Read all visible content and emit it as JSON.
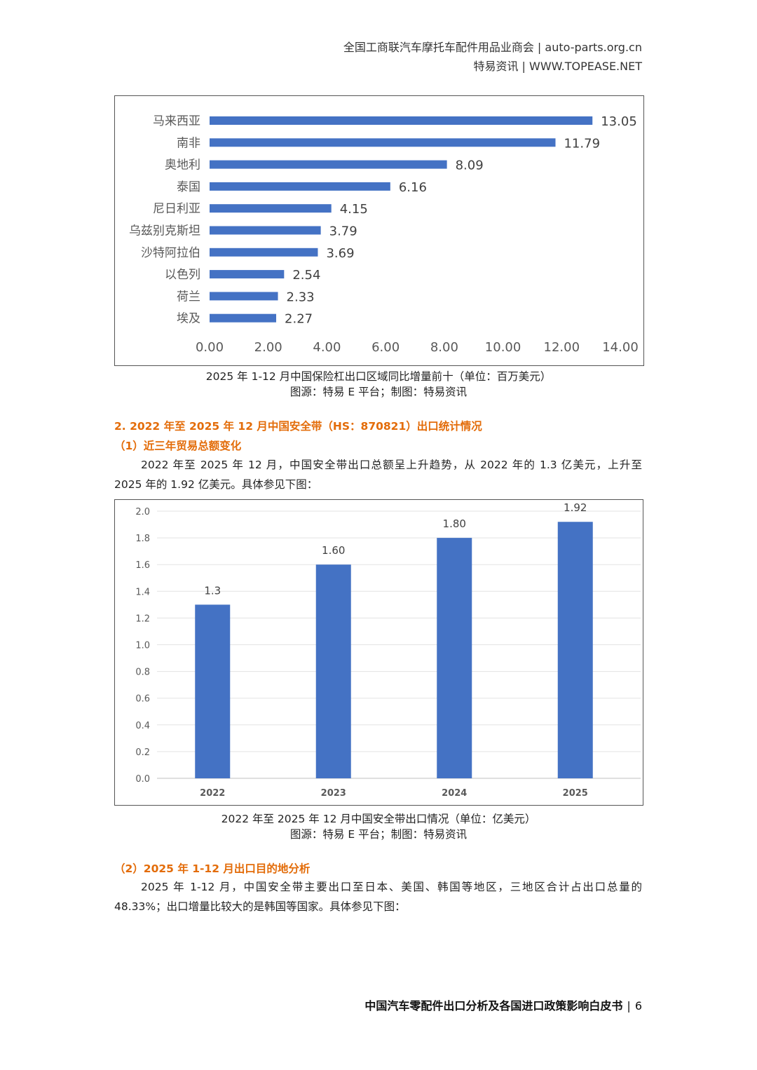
{
  "header": {
    "line1": "全国工商联汽车摩托车配件用品业商会 | auto-parts.org.cn",
    "line2": "特易资讯 | WWW.TOPEASE.NET"
  },
  "chart1_caption": {
    "title": "2025 年 1-12 月中国保险杠出口区域同比增量前十（单位：百万美元）",
    "source": "图源：特易 E 平台；制图：特易资讯"
  },
  "section2": {
    "title": "2. 2022 年至 2025 年 12 月中国安全带（HS：870821）出口统计情况",
    "sub1": "（1）近三年贸易总额变化",
    "para1": "2022 年至 2025 年 12 月，中国安全带出口总额呈上升趋势，从 2022 年的 1.3 亿美元，上升至 2025 年的 1.92 亿美元。具体参见下图："
  },
  "chart2_caption": {
    "title": "2022 年至 2025 年 12 月中国安全带出口情况（单位：亿美元）",
    "source": "图源：特易 E 平台；制图：特易资讯"
  },
  "section3": {
    "sub2": "（2）2025 年 1-12 月出口目的地分析",
    "para2": "2025 年 1-12 月，中国安全带主要出口至日本、美国、韩国等地区，三地区合计占出口总量的 48.33%；出口增量比较大的是韩国等国家。具体参见下图："
  },
  "footer": {
    "title": "中国汽车零配件出口分析及各国进口政策影响白皮书",
    "page": "6"
  },
  "chart_data": [
    {
      "type": "bar",
      "orientation": "horizontal",
      "categories": [
        "马来西亚",
        "南非",
        "奥地利",
        "泰国",
        "尼日利亚",
        "乌兹别克斯坦",
        "沙特阿拉伯",
        "以色列",
        "荷兰",
        "埃及"
      ],
      "values": [
        13.05,
        11.79,
        8.09,
        6.16,
        4.15,
        3.79,
        3.69,
        2.54,
        2.33,
        2.27
      ],
      "labels": [
        "13.05",
        "11.79",
        "8.09",
        "6.16",
        "4.15",
        "3.79",
        "3.69",
        "2.54",
        "2.33",
        "2.27"
      ],
      "xticks": [
        "0.00",
        "2.00",
        "4.00",
        "6.00",
        "8.00",
        "10.00",
        "12.00",
        "14.00"
      ],
      "xlim": [
        0,
        14
      ],
      "color": "#4472c4",
      "grid": false
    },
    {
      "type": "bar",
      "categories": [
        "2022",
        "2023",
        "2024",
        "2025"
      ],
      "values": [
        1.3,
        1.6,
        1.8,
        1.92
      ],
      "labels": [
        "1.3",
        "1.60",
        "1.80",
        "1.92"
      ],
      "yticks": [
        "0.0",
        "0.2",
        "0.4",
        "0.6",
        "0.8",
        "1.0",
        "1.2",
        "1.4",
        "1.6",
        "1.8",
        "2.0"
      ],
      "ylim": [
        0,
        2.0
      ],
      "color": "#4472c4",
      "grid": true
    }
  ]
}
